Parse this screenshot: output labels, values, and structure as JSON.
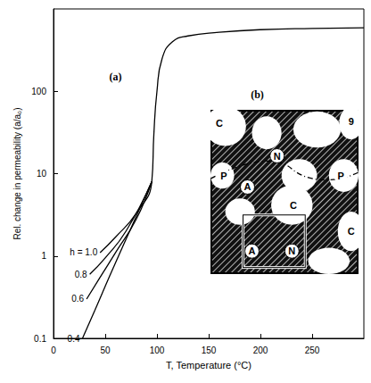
{
  "chart_data": {
    "type": "line",
    "x_label": "T, Temperature (°C)",
    "y_label": "Rel. change in permeability (a/a₀)",
    "log": "y",
    "grid": false,
    "xlim": [
      0,
      300
    ],
    "xticks": [
      0,
      50,
      100,
      150,
      200,
      250
    ],
    "ylim": [
      0.1,
      1000
    ],
    "yticks": [
      0.1,
      1,
      10,
      100
    ],
    "series": [
      {
        "name": "h = 1.0",
        "color": "#000000",
        "marker": "none",
        "line_style": "solid",
        "x": [
          45,
          60,
          80,
          95,
          97,
          100,
          105,
          115,
          130,
          160,
          200,
          250,
          300
        ],
        "values": [
          1.1,
          1.7,
          3.3,
          8,
          30,
          100,
          250,
          400,
          470,
          520,
          560,
          580,
          590
        ]
      },
      {
        "name": "0.8",
        "color": "#000000",
        "marker": "none",
        "line_style": "solid",
        "x": [
          35,
          50,
          70,
          95
        ],
        "values": [
          0.6,
          0.95,
          2.0,
          8
        ]
      },
      {
        "name": "0.6",
        "color": "#000000",
        "marker": "none",
        "line_style": "solid",
        "x": [
          32,
          45,
          60,
          80,
          95
        ],
        "values": [
          0.3,
          0.55,
          1.1,
          2.8,
          8
        ]
      },
      {
        "name": "0.4",
        "color": "#000000",
        "marker": "none",
        "line_style": "solid",
        "x": [
          28,
          40,
          55,
          75,
          95
        ],
        "values": [
          0.1,
          0.22,
          0.6,
          2.2,
          8
        ]
      }
    ],
    "annotations": [
      {
        "text": "(a)",
        "x": 60,
        "y": 150
      },
      {
        "text": "(b)",
        "x": 197,
        "y": 90
      }
    ],
    "inset": {
      "labels": [
        "C",
        "9",
        "P",
        "N",
        "A",
        "C",
        "P",
        "C",
        "N",
        "A"
      ]
    }
  }
}
